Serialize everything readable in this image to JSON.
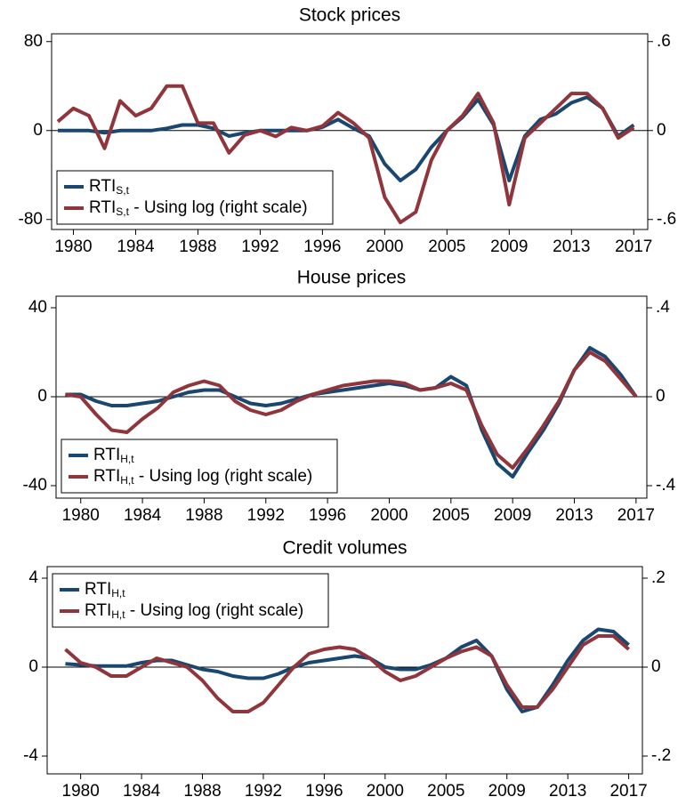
{
  "chart_data": [
    {
      "type": "line",
      "title": "Stock prices",
      "x": [
        1979,
        1980,
        1981,
        1982,
        1983,
        1984,
        1985,
        1986,
        1987,
        1988,
        1989,
        1990,
        1991,
        1992,
        1993,
        1994,
        1995,
        1996,
        1997,
        1998,
        1999,
        2000,
        2001,
        2002,
        2003,
        2004,
        2005,
        2006,
        2007,
        2008,
        2009,
        2010,
        2011,
        2012,
        2013,
        2014,
        2015,
        2016
      ],
      "xlim": [
        1978.6,
        2016.9
      ],
      "xticks": [
        1980,
        1984,
        1988,
        1992,
        1996,
        2000,
        {
          "value": 2004,
          "label": "2005"
        },
        {
          "value": 2008,
          "label": "2009"
        },
        {
          "value": 2012,
          "label": "2013"
        },
        {
          "value": 2016,
          "label": "2017"
        }
      ],
      "ylim": [
        -89,
        87
      ],
      "yticks": [
        -80,
        0,
        80
      ],
      "y2lim": [
        -0.6675,
        0.6525
      ],
      "y2ticks": [
        {
          "value": -0.6,
          "label": "-.6"
        },
        0,
        {
          "value": 0.6,
          "label": ".6"
        }
      ],
      "legend": "lower left",
      "series": [
        {
          "name": "RTI",
          "subscript": "S,t",
          "color": "#1a476f",
          "values": [
            0,
            0,
            0,
            -2,
            0,
            0,
            0,
            2,
            5,
            5,
            2,
            -5,
            -2,
            0,
            0,
            0,
            0,
            3,
            10,
            2,
            -5,
            -30,
            -45,
            -35,
            -15,
            0,
            12,
            28,
            5,
            -45,
            -5,
            10,
            15,
            25,
            30,
            20,
            -5,
            5
          ]
        },
        {
          "name": "RTI",
          "subscript": "S,t",
          "suffix": " - Using log (right scale)",
          "color": "#90353b",
          "axis": "y2",
          "values": [
            0.06,
            0.15,
            0.1,
            -0.12,
            0.2,
            0.1,
            0.15,
            0.3,
            0.3,
            0.05,
            0.05,
            -0.15,
            -0.03,
            0,
            -0.04,
            0.02,
            0,
            0.03,
            0.12,
            0.05,
            -0.05,
            -0.45,
            -0.62,
            -0.55,
            -0.2,
            0,
            0.1,
            0.25,
            0.05,
            -0.5,
            -0.05,
            0.05,
            0.15,
            0.25,
            0.25,
            0.15,
            -0.05,
            0.02
          ]
        }
      ]
    },
    {
      "type": "line",
      "title": "House prices",
      "x": [
        1979,
        1980,
        1981,
        1982,
        1983,
        1984,
        1985,
        1986,
        1987,
        1988,
        1989,
        1990,
        1991,
        1992,
        1993,
        1994,
        1995,
        1996,
        1997,
        1998,
        1999,
        2000,
        2001,
        2002,
        2003,
        2004,
        2005,
        2006,
        2007,
        2008,
        2009,
        2010,
        2011,
        2012,
        2013,
        2014,
        2015,
        2016
      ],
      "xlim": [
        1978.4,
        2016.7
      ],
      "xticks": [
        1980,
        1984,
        1988,
        1992,
        1996,
        2000,
        {
          "value": 2004,
          "label": "2005"
        },
        {
          "value": 2008,
          "label": "2009"
        },
        {
          "value": 2012,
          "label": "2013"
        },
        {
          "value": 2016,
          "label": "2017"
        }
      ],
      "ylim": [
        -45.6,
        45.2
      ],
      "yticks": [
        -40,
        0,
        40
      ],
      "y2lim": [
        -0.456,
        0.452
      ],
      "y2ticks": [
        {
          "value": -0.4,
          "label": "-.4"
        },
        0,
        {
          "value": 0.4,
          "label": ".4"
        }
      ],
      "legend": "lower left",
      "series": [
        {
          "name": "RTI",
          "subscript": "H,t",
          "color": "#1a476f",
          "values": [
            1,
            1,
            -2,
            -4,
            -4,
            -3,
            -2,
            0,
            2,
            3,
            3,
            0,
            -3,
            -4,
            -3,
            -1,
            1,
            2,
            3,
            4,
            5,
            6,
            5,
            3,
            4,
            9,
            5,
            -15,
            -30,
            -36,
            -25,
            -15,
            -3,
            12,
            22,
            18,
            10,
            0
          ]
        },
        {
          "name": "RTI",
          "subscript": "H,t",
          "suffix": " - Using log (right scale)",
          "color": "#90353b",
          "axis": "y2",
          "values": [
            0.01,
            0,
            -0.08,
            -0.15,
            -0.16,
            -0.1,
            -0.05,
            0.02,
            0.05,
            0.07,
            0.05,
            -0.02,
            -0.06,
            -0.08,
            -0.06,
            -0.02,
            0.01,
            0.03,
            0.05,
            0.06,
            0.07,
            0.07,
            0.06,
            0.03,
            0.04,
            0.06,
            0.03,
            -0.13,
            -0.26,
            -0.32,
            -0.23,
            -0.13,
            -0.02,
            0.12,
            0.2,
            0.16,
            0.08,
            0
          ]
        }
      ]
    },
    {
      "type": "line",
      "title": "Credit volumes",
      "x": [
        1979,
        1980,
        1981,
        1982,
        1983,
        1984,
        1985,
        1986,
        1987,
        1988,
        1989,
        1990,
        1991,
        1992,
        1993,
        1994,
        1995,
        1996,
        1997,
        1998,
        1999,
        2000,
        2001,
        2002,
        2003,
        2004,
        2005,
        2006,
        2007,
        2008,
        2009,
        2010,
        2011,
        2012,
        2013,
        2014,
        2015,
        2016
      ],
      "xlim": [
        1977.8,
        2016.9
      ],
      "xticks": [
        1980,
        1984,
        1988,
        1992,
        1996,
        2000,
        {
          "value": 2004,
          "label": "2005"
        },
        {
          "value": 2008,
          "label": "2009"
        },
        {
          "value": 2012,
          "label": "2013"
        },
        {
          "value": 2016,
          "label": "2017"
        }
      ],
      "ylim": [
        -4.8,
        4.52
      ],
      "yticks": [
        -4,
        0,
        4
      ],
      "y2lim": [
        -0.24,
        0.226
      ],
      "y2ticks": [
        {
          "value": -0.2,
          "label": "-.2"
        },
        0,
        {
          "value": 0.2,
          "label": ".2"
        }
      ],
      "legend": "upper left",
      "series": [
        {
          "name": "RTI",
          "subscript": "H,t",
          "color": "#1a476f",
          "values": [
            0.15,
            0.1,
            0.05,
            0.05,
            0.05,
            0.2,
            0.3,
            0.3,
            0.1,
            -0.1,
            -0.2,
            -0.4,
            -0.5,
            -0.5,
            -0.3,
            0,
            0.2,
            0.3,
            0.4,
            0.5,
            0.4,
            0,
            -0.1,
            -0.1,
            0.1,
            0.4,
            0.9,
            1.2,
            0.5,
            -1.0,
            -2.0,
            -1.8,
            -0.8,
            0.3,
            1.2,
            1.7,
            1.6,
            1.0
          ]
        },
        {
          "name": "RTI",
          "subscript": "H,t",
          "suffix": " - Using log (right scale)",
          "color": "#90353b",
          "axis": "y2",
          "values": [
            0.04,
            0.01,
            0,
            -0.02,
            -0.02,
            0,
            0.02,
            0.01,
            0,
            -0.03,
            -0.07,
            -0.1,
            -0.1,
            -0.08,
            -0.04,
            0,
            0.03,
            0.04,
            0.045,
            0.04,
            0.02,
            -0.01,
            -0.03,
            -0.02,
            0,
            0.02,
            0.035,
            0.045,
            0.025,
            -0.04,
            -0.09,
            -0.09,
            -0.05,
            0,
            0.05,
            0.07,
            0.07,
            0.04
          ]
        }
      ]
    }
  ]
}
